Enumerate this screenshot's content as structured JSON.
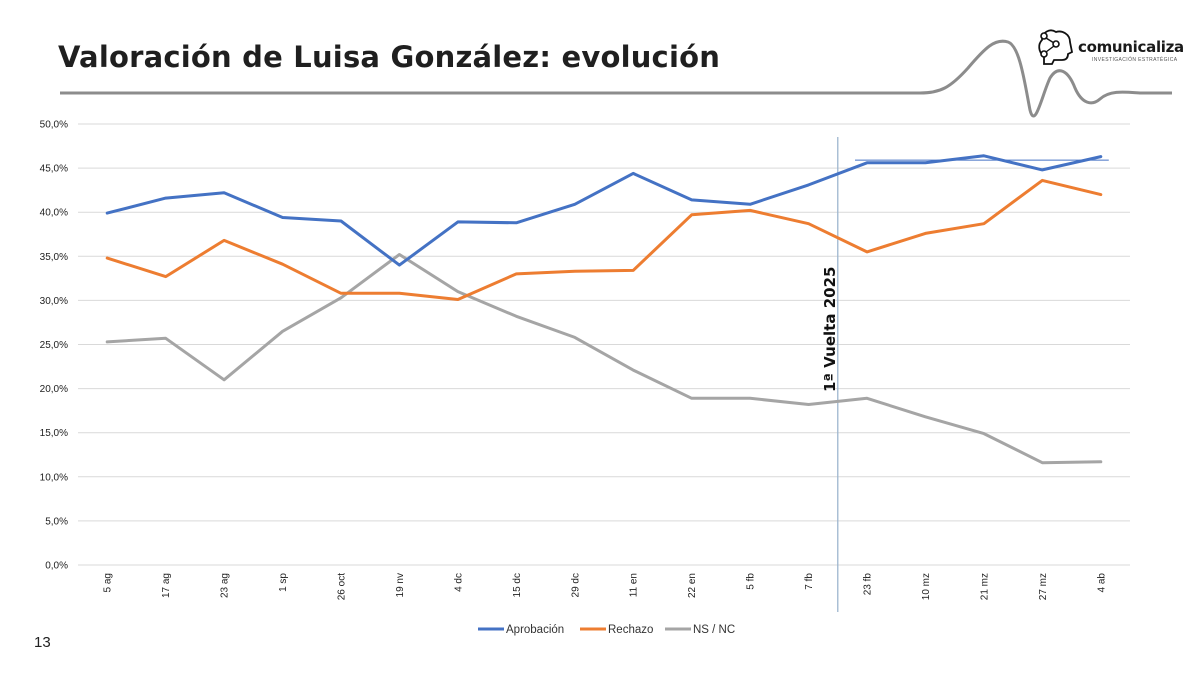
{
  "slide": {
    "title": "Valoración de Luisa González: evolución",
    "page_number": "13"
  },
  "logo": {
    "name": "comunicaliza",
    "tagline": "INVESTIGACIÓN ESTRATÉGICA"
  },
  "colors": {
    "aprobacion": "#4472C4",
    "rechazo": "#ED7D31",
    "nsnc": "#A5A5A5",
    "grid": "#D9D9D9",
    "divider": "#9DB6CF",
    "header_wave": "#8C8C8C"
  },
  "chart_data": {
    "type": "line",
    "title": "",
    "xlabel": "",
    "ylabel": "",
    "ylim": [
      0,
      50
    ],
    "yticks": [
      0,
      5,
      10,
      15,
      20,
      25,
      30,
      35,
      40,
      45,
      50
    ],
    "ytick_labels": [
      "0,0%",
      "5,0%",
      "10,0%",
      "15,0%",
      "20,0%",
      "25,0%",
      "30,0%",
      "35,0%",
      "40,0%",
      "45,0%",
      "50,0%"
    ],
    "grid": true,
    "legend_position": "bottom",
    "categories": [
      "5 ag",
      "17 ag",
      "23 ag",
      "1 sp",
      "26 oct",
      "19 nv",
      "4 dc",
      "15 dc",
      "29 dc",
      "11 en",
      "22 en",
      "5 fb",
      "7 fb",
      "23 fb",
      "10 mz",
      "21 mz",
      "27 mz",
      "4 ab"
    ],
    "series": [
      {
        "name": "Aprobación",
        "color": "#4472C4",
        "values": [
          39.9,
          41.6,
          42.2,
          39.4,
          39.0,
          34.0,
          38.9,
          38.8,
          40.9,
          44.4,
          41.4,
          40.9,
          43.1,
          45.6,
          45.6,
          46.4,
          44.8,
          46.3
        ]
      },
      {
        "name": "Rechazo",
        "color": "#ED7D31",
        "values": [
          34.8,
          32.7,
          36.8,
          34.1,
          30.8,
          30.8,
          30.1,
          33.0,
          33.3,
          33.4,
          39.7,
          40.2,
          38.7,
          35.5,
          37.6,
          38.7,
          43.6,
          42.0
        ]
      },
      {
        "name": "NS / NC",
        "color": "#A5A5A5",
        "values": [
          25.3,
          25.7,
          21.0,
          26.5,
          30.3,
          35.2,
          31.0,
          28.2,
          25.8,
          22.1,
          18.9,
          18.9,
          18.2,
          18.9,
          16.8,
          14.9,
          11.6,
          11.7
        ]
      }
    ],
    "annotations": [
      {
        "text": "1ª Vuelta 2025",
        "between_categories": [
          "7 fb",
          "23 fb"
        ],
        "type": "vertical-divider"
      },
      {
        "type": "reference-line",
        "series": "Aprobación",
        "y": 45.9,
        "from_category": "23 fb",
        "to_category": "4 ab"
      }
    ]
  }
}
